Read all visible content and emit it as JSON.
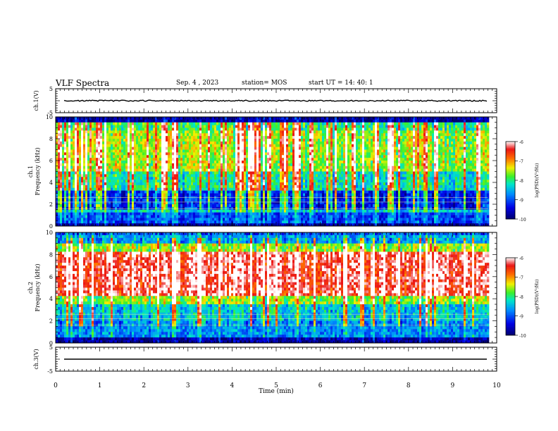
{
  "header": {
    "title": "VLF Spectra",
    "date": "Sep. 4 , 2023",
    "station": "station= MOS",
    "start": "start  UT  =   14: 40: 1"
  },
  "chart_data": [
    {
      "type": "line",
      "name": "ch1-waveform",
      "ylabel": "ch.1(V)",
      "ylim": [
        -5,
        5
      ],
      "yticks": [
        "5",
        "-5"
      ],
      "xlim": [
        0,
        10
      ],
      "trace_level": 0
    },
    {
      "type": "heatmap",
      "name": "ch1-spectrogram",
      "ylabel": "ch.1\nFrequency (kHz)",
      "ylim": [
        0,
        10
      ],
      "yticks": [
        "0",
        "2",
        "4",
        "6",
        "8",
        "10"
      ],
      "xlim": [
        0,
        10
      ],
      "data_end_min": 9.8,
      "colorbar": {
        "label": "log(PSD)(V²/Hz)",
        "range": [
          -10,
          -6
        ],
        "ticks": [
          "-6",
          "-7",
          "-8",
          "-9",
          "-10"
        ]
      }
    },
    {
      "type": "heatmap",
      "name": "ch2-spectrogram",
      "ylabel": "ch.2\nFrequency (kHz)",
      "ylim": [
        0,
        10
      ],
      "yticks": [
        "0",
        "2",
        "4",
        "6",
        "8",
        "10"
      ],
      "xlim": [
        0,
        10
      ],
      "data_end_min": 9.8,
      "colorbar": {
        "label": "log(PSD)(V²/Hz)",
        "range": [
          -10,
          -6
        ],
        "ticks": [
          "-6",
          "-7",
          "-8",
          "-9",
          "-10"
        ]
      }
    },
    {
      "type": "line",
      "name": "ch3-waveform",
      "ylabel": "ch.3(V)",
      "ylim": [
        -5,
        5
      ],
      "yticks": [
        "5",
        "-5"
      ],
      "xlim": [
        0,
        10
      ],
      "trace_level": 0
    }
  ],
  "xaxis": {
    "label": "Time (min)",
    "ticks": [
      "0",
      "1",
      "2",
      "3",
      "4",
      "5",
      "6",
      "7",
      "8",
      "9",
      "10"
    ]
  }
}
